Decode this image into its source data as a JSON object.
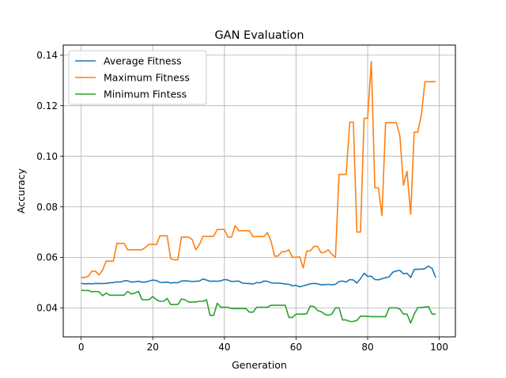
{
  "chart_data": {
    "type": "line",
    "title": "GAN Evaluation",
    "xlabel": "Generation",
    "ylabel": "Accuracy",
    "xlim": [
      -5,
      104.5
    ],
    "ylim": [
      0.0285,
      0.144
    ],
    "xticks": [
      0,
      20,
      40,
      60,
      80,
      100
    ],
    "xtick_labels": [
      "0",
      "20",
      "40",
      "60",
      "80",
      "100"
    ],
    "yticks": [
      0.04,
      0.06,
      0.08,
      0.1,
      0.12,
      0.14
    ],
    "ytick_labels": [
      "0.04",
      "0.06",
      "0.08",
      "0.10",
      "0.12",
      "0.14"
    ],
    "grid": true,
    "legend_position": "upper-left",
    "x": [
      0,
      1,
      2,
      3,
      4,
      5,
      6,
      7,
      8,
      9,
      10,
      11,
      12,
      13,
      14,
      15,
      16,
      17,
      18,
      19,
      20,
      21,
      22,
      23,
      24,
      25,
      26,
      27,
      28,
      29,
      30,
      31,
      32,
      33,
      34,
      35,
      36,
      37,
      38,
      39,
      40,
      41,
      42,
      43,
      44,
      45,
      46,
      47,
      48,
      49,
      50,
      51,
      52,
      53,
      54,
      55,
      56,
      57,
      58,
      59,
      60,
      61,
      62,
      63,
      64,
      65,
      66,
      67,
      68,
      69,
      70,
      71,
      72,
      73,
      74,
      75,
      76,
      77,
      78,
      79,
      80,
      81,
      82,
      83,
      84,
      85,
      86,
      87,
      88,
      89,
      90,
      91,
      92,
      93,
      94,
      95,
      96,
      97,
      98,
      99
    ],
    "series": [
      {
        "name": "Average Fitness",
        "color": "#1f77b4",
        "values": [
          0.0497,
          0.0495,
          0.0496,
          0.0495,
          0.0497,
          0.0496,
          0.0496,
          0.0497,
          0.0499,
          0.05,
          0.0503,
          0.0502,
          0.0507,
          0.0507,
          0.0502,
          0.0503,
          0.0505,
          0.0502,
          0.0502,
          0.0506,
          0.051,
          0.0508,
          0.0501,
          0.05,
          0.0502,
          0.0498,
          0.05,
          0.0499,
          0.0506,
          0.0507,
          0.0506,
          0.0504,
          0.0505,
          0.0506,
          0.0514,
          0.051,
          0.0505,
          0.0506,
          0.0505,
          0.0507,
          0.0512,
          0.051,
          0.0504,
          0.0505,
          0.0506,
          0.0498,
          0.0497,
          0.0496,
          0.0494,
          0.05,
          0.0499,
          0.0506,
          0.0505,
          0.0499,
          0.0498,
          0.0498,
          0.0497,
          0.0494,
          0.0493,
          0.0487,
          0.0489,
          0.0483,
          0.0487,
          0.0491,
          0.0495,
          0.0497,
          0.0495,
          0.0491,
          0.0492,
          0.0493,
          0.0491,
          0.0493,
          0.0504,
          0.0506,
          0.0502,
          0.0512,
          0.051,
          0.0498,
          0.0515,
          0.0537,
          0.0524,
          0.0525,
          0.0512,
          0.0511,
          0.0515,
          0.0519,
          0.0523,
          0.0541,
          0.0546,
          0.0548,
          0.0535,
          0.0537,
          0.052,
          0.0552,
          0.0553,
          0.0553,
          0.0555,
          0.0565,
          0.0556,
          0.052
        ]
      },
      {
        "name": "Maximum Fitness",
        "color": "#ff7f0e",
        "values": [
          0.052,
          0.052,
          0.0525,
          0.0545,
          0.0545,
          0.053,
          0.055,
          0.0585,
          0.0585,
          0.0585,
          0.0655,
          0.0655,
          0.0655,
          0.063,
          0.063,
          0.063,
          0.063,
          0.063,
          0.064,
          0.0652,
          0.0652,
          0.065,
          0.0685,
          0.0685,
          0.0685,
          0.0595,
          0.059,
          0.059,
          0.068,
          0.068,
          0.068,
          0.067,
          0.063,
          0.065,
          0.0683,
          0.0683,
          0.0683,
          0.0683,
          0.071,
          0.071,
          0.071,
          0.068,
          0.068,
          0.0725,
          0.0705,
          0.0705,
          0.0705,
          0.0705,
          0.0682,
          0.0682,
          0.0682,
          0.0682,
          0.0698,
          0.0665,
          0.0605,
          0.0605,
          0.0622,
          0.0622,
          0.063,
          0.06,
          0.06,
          0.0602,
          0.0558,
          0.0625,
          0.0625,
          0.0643,
          0.0643,
          0.0618,
          0.062,
          0.063,
          0.0612,
          0.06,
          0.0928,
          0.0928,
          0.0928,
          0.1135,
          0.1135,
          0.07,
          0.07,
          0.115,
          0.115,
          0.1375,
          0.0875,
          0.0875,
          0.0765,
          0.1133,
          0.1133,
          0.1133,
          0.1133,
          0.108,
          0.0885,
          0.094,
          0.077,
          0.1095,
          0.1095,
          0.1165,
          0.1295,
          0.1295,
          0.1295,
          0.1295
        ]
      },
      {
        "name": "Minimum Fintess",
        "color": "#2ca02c",
        "values": [
          0.047,
          0.0468,
          0.0469,
          0.0463,
          0.0465,
          0.0463,
          0.0448,
          0.0458,
          0.045,
          0.045,
          0.045,
          0.045,
          0.045,
          0.0465,
          0.0455,
          0.0458,
          0.0465,
          0.0432,
          0.0432,
          0.0432,
          0.0445,
          0.0432,
          0.0426,
          0.0426,
          0.0437,
          0.0413,
          0.0413,
          0.0413,
          0.0435,
          0.0432,
          0.0423,
          0.0423,
          0.0423,
          0.0426,
          0.0426,
          0.0432,
          0.037,
          0.037,
          0.0418,
          0.0402,
          0.0402,
          0.0402,
          0.0397,
          0.0397,
          0.0397,
          0.0397,
          0.0397,
          0.0383,
          0.0383,
          0.0402,
          0.0402,
          0.0402,
          0.0402,
          0.041,
          0.041,
          0.041,
          0.041,
          0.041,
          0.0362,
          0.0362,
          0.0375,
          0.0375,
          0.0375,
          0.0377,
          0.0407,
          0.0405,
          0.039,
          0.0385,
          0.0375,
          0.037,
          0.0375,
          0.04,
          0.04,
          0.0352,
          0.0352,
          0.0346,
          0.0346,
          0.035,
          0.0367,
          0.0367,
          0.0366,
          0.0365,
          0.0365,
          0.0365,
          0.0365,
          0.0365,
          0.04,
          0.04,
          0.04,
          0.0395,
          0.0375,
          0.0375,
          0.034,
          0.0375,
          0.0401,
          0.0401,
          0.0403,
          0.0405,
          0.0375,
          0.0375
        ]
      }
    ]
  }
}
